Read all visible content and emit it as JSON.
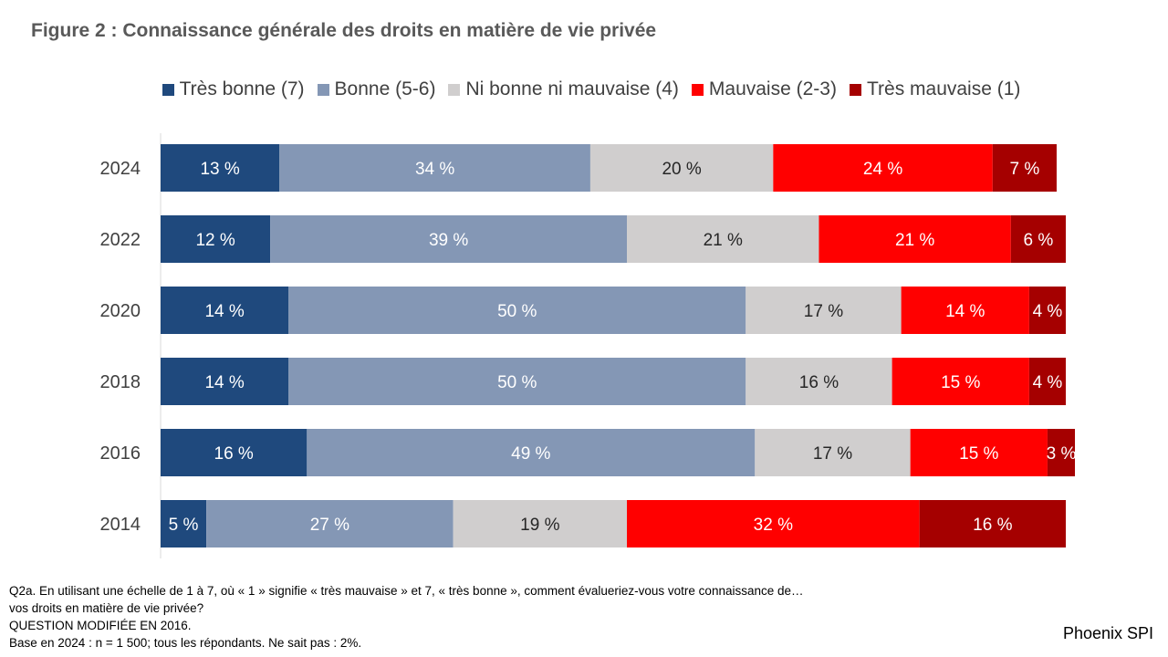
{
  "chart_data": {
    "type": "bar",
    "orientation": "horizontal",
    "stacked": true,
    "title": "Figure 2 : Connaissance générale des droits en matière de vie privée",
    "categories": [
      "2024",
      "2022",
      "2020",
      "2018",
      "2016",
      "2014"
    ],
    "series": [
      {
        "name": "Très bonne (7)",
        "color": "#1F497D",
        "label_color": "#ffffff",
        "values": [
          13,
          12,
          14,
          14,
          16,
          5
        ],
        "labels": [
          "13 %",
          "12 %",
          "14 %",
          "14 %",
          "16 %",
          "5 %"
        ]
      },
      {
        "name": "Bonne (5-6)",
        "color": "#8497B5",
        "label_color": "#ffffff",
        "values": [
          34,
          39,
          50,
          50,
          49,
          27
        ],
        "labels": [
          "34 %",
          "39 %",
          "50 %",
          "50 %",
          "49 %",
          "27 %"
        ]
      },
      {
        "name": "Ni bonne ni mauvaise (4)",
        "color": "#D0CECE",
        "label_color": "#262626",
        "values": [
          20,
          21,
          17,
          16,
          17,
          19
        ],
        "labels": [
          "20 %",
          "21 %",
          "17 %",
          "16 %",
          "17 %",
          "19 %"
        ]
      },
      {
        "name": "Mauvaise (2-3)",
        "color": "#FF0000",
        "label_color": "#ffffff",
        "values": [
          24,
          21,
          14,
          15,
          15,
          32
        ],
        "labels": [
          "24 %",
          "21 %",
          "14 %",
          "15 %",
          "15 %",
          "32 %"
        ]
      },
      {
        "name": "Très mauvaise (1)",
        "color": "#A50000",
        "label_color": "#ffffff",
        "values": [
          7,
          6,
          4,
          4,
          3,
          16
        ],
        "labels": [
          "7 %",
          "6 %",
          "4 %",
          "4 %",
          "3 %",
          "16 %"
        ]
      }
    ],
    "xlim": [
      0,
      100
    ],
    "legend_position": "top",
    "grid": false
  },
  "notes": [
    "Q2a. En utilisant une échelle de 1 à 7, où « 1 » signifie « très mauvaise » et 7, « très bonne », comment évalueriez-vous votre connaissance de…",
    "vos droits en matière de vie privée?",
    "QUESTION MODIFIÉE EN 2016.",
    "Base en 2024 : n = 1 500; tous les répondants. Ne sait pas : 2%."
  ],
  "brand": "Phoenix SPI"
}
